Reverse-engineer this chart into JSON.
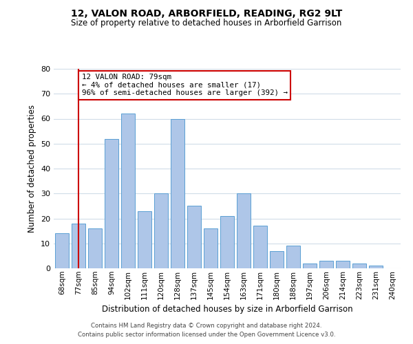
{
  "title": "12, VALON ROAD, ARBORFIELD, READING, RG2 9LT",
  "subtitle": "Size of property relative to detached houses in Arborfield Garrison",
  "xlabel": "Distribution of detached houses by size in Arborfield Garrison",
  "ylabel": "Number of detached properties",
  "bar_labels": [
    "68sqm",
    "77sqm",
    "85sqm",
    "94sqm",
    "102sqm",
    "111sqm",
    "120sqm",
    "128sqm",
    "137sqm",
    "145sqm",
    "154sqm",
    "163sqm",
    "171sqm",
    "180sqm",
    "188sqm",
    "197sqm",
    "206sqm",
    "214sqm",
    "223sqm",
    "231sqm",
    "240sqm"
  ],
  "bar_values": [
    14,
    18,
    16,
    52,
    62,
    23,
    30,
    60,
    25,
    16,
    21,
    30,
    17,
    7,
    9,
    2,
    3,
    3,
    2,
    1,
    0
  ],
  "bar_color": "#aec6e8",
  "bar_edge_color": "#5a9fd4",
  "annotation_line1": "12 VALON ROAD: 79sqm",
  "annotation_line2": "← 4% of detached houses are smaller (17)",
  "annotation_line3": "96% of semi-detached houses are larger (392) →",
  "annotation_box_color": "#ffffff",
  "annotation_box_edge_color": "#cc0000",
  "vline_x": 1,
  "vline_color": "#cc0000",
  "ylim": [
    0,
    80
  ],
  "yticks": [
    0,
    10,
    20,
    30,
    40,
    50,
    60,
    70,
    80
  ],
  "footer_line1": "Contains HM Land Registry data © Crown copyright and database right 2024.",
  "footer_line2": "Contains public sector information licensed under the Open Government Licence v3.0.",
  "background_color": "#ffffff",
  "grid_color": "#d0dce8"
}
